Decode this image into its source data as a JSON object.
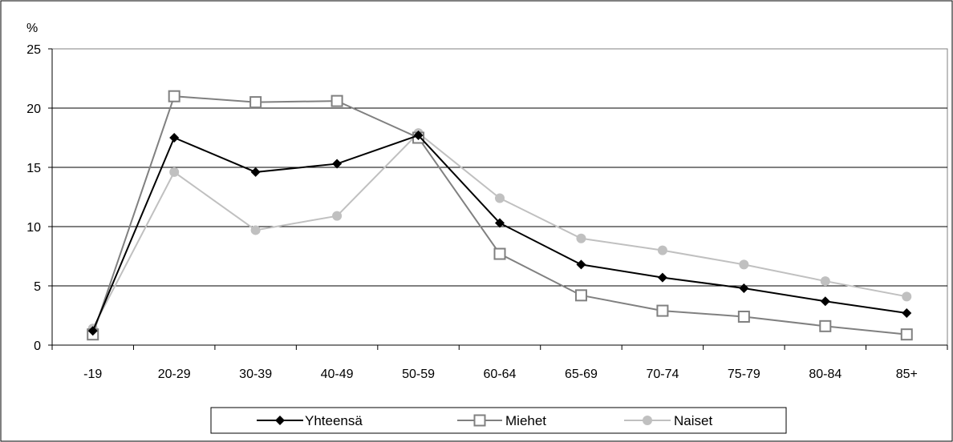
{
  "chart_data": {
    "type": "line",
    "title": "",
    "xlabel": "",
    "ylabel": "%",
    "ylim": [
      0,
      25
    ],
    "yticks": [
      "0",
      "5",
      "10",
      "15",
      "20",
      "25"
    ],
    "grid": "horizontal",
    "legend_position": "bottom",
    "categories": [
      "-19",
      "20-29",
      "30-39",
      "40-49",
      "50-59",
      "60-64",
      "65-69",
      "70-74",
      "75-79",
      "80-84",
      "85+"
    ],
    "series": [
      {
        "name": "Yhteensä",
        "color": "#000000",
        "marker": "diamond",
        "values": [
          1.2,
          17.5,
          14.6,
          15.3,
          17.7,
          10.3,
          6.8,
          5.7,
          4.8,
          3.7,
          2.7
        ]
      },
      {
        "name": "Miehet",
        "color": "#808080",
        "marker": "open-square",
        "values": [
          0.9,
          21.0,
          20.5,
          20.6,
          17.5,
          7.7,
          4.2,
          2.9,
          2.4,
          1.6,
          0.9
        ]
      },
      {
        "name": "Naiset",
        "color": "#c0c0c0",
        "marker": "circle",
        "values": [
          1.4,
          14.6,
          9.7,
          10.9,
          17.9,
          12.4,
          9.0,
          8.0,
          6.8,
          5.4,
          4.1
        ]
      }
    ]
  }
}
